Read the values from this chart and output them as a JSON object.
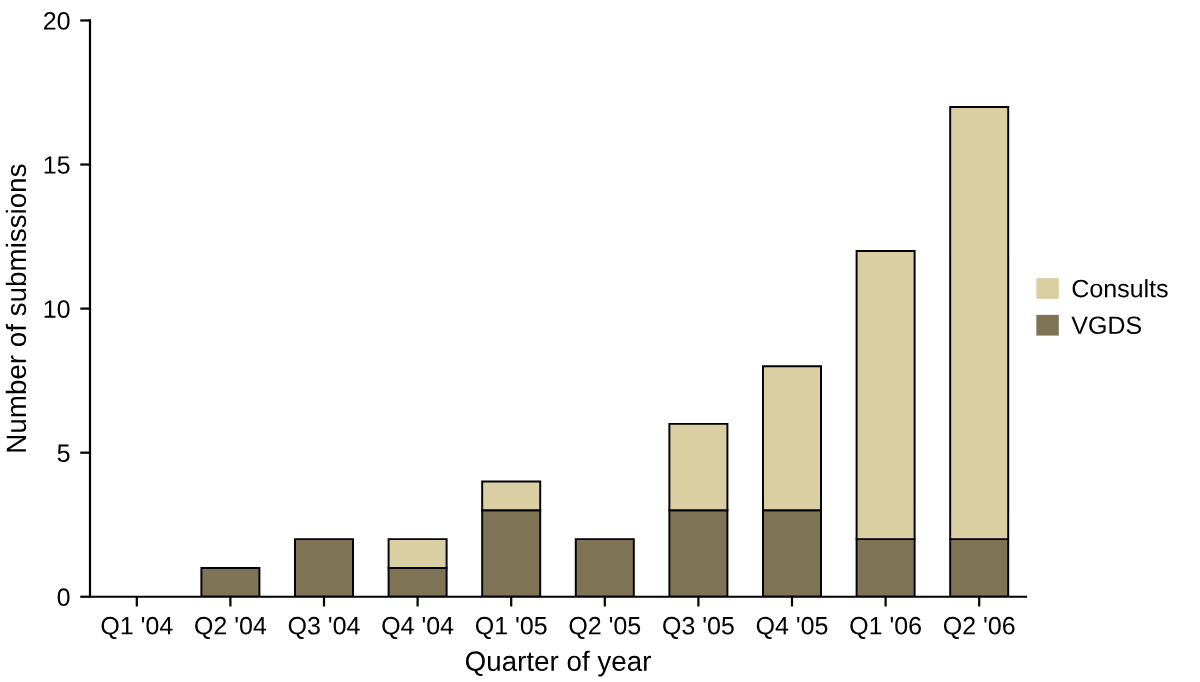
{
  "chart_data": {
    "type": "bar",
    "stacked": true,
    "xlabel": "Quarter of year",
    "ylabel": "Number of submissions",
    "categories": [
      "Q1 '04",
      "Q2 '04",
      "Q3 '04",
      "Q4 '04",
      "Q1 '05",
      "Q2 '05",
      "Q3 '05",
      "Q4 '05",
      "Q1 '06",
      "Q2 '06"
    ],
    "series": [
      {
        "name": "VGDS",
        "color": "#7f7356",
        "values": [
          0,
          1,
          2,
          1,
          3,
          2,
          3,
          3,
          2,
          2
        ]
      },
      {
        "name": "Consults",
        "color": "#d9cfa3",
        "values": [
          0,
          0,
          0,
          1,
          1,
          0,
          3,
          5,
          10,
          15
        ]
      }
    ],
    "ylim": [
      0,
      20
    ],
    "yticks": [
      0,
      5,
      10,
      15,
      20
    ],
    "grid": false,
    "legend": "right"
  }
}
